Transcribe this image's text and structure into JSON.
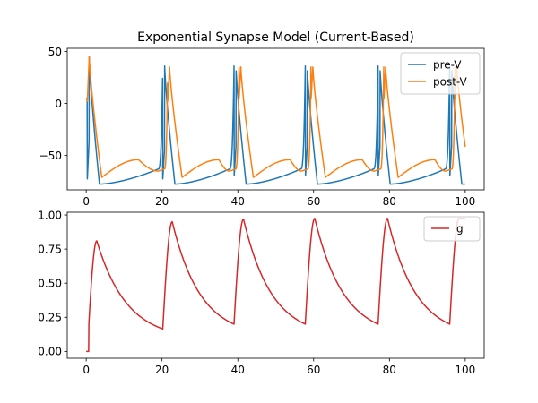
{
  "chart_data": [
    {
      "type": "line",
      "title": "Exponential Synapse Model (Current-Based)",
      "xlabel": "",
      "ylabel": "",
      "xlim": [
        -5,
        105
      ],
      "ylim": [
        -83,
        53
      ],
      "xticks": [
        0,
        20,
        40,
        60,
        80,
        100
      ],
      "yticks": [
        50,
        0,
        -50
      ],
      "legend_position": "upper-right",
      "grid": false,
      "series": [
        {
          "name": "pre-V",
          "color": "#1f77b4",
          "spike_times": [
            0.3,
            20.2,
            39.0,
            57.8,
            77.0,
            95.9
          ],
          "peak_values": [
            45,
            36,
            36,
            36,
            36,
            36
          ],
          "trough": -77.5,
          "pre_spike_level": -65
        },
        {
          "name": "post-V",
          "color": "#ff7f0e",
          "spike_times": [
            0.3,
            21.5,
            40.3,
            59.3,
            78.5,
            97.3
          ],
          "peak_values": [
            45,
            35,
            35,
            35,
            35,
            35
          ],
          "trough": -71,
          "bump_peak": -54,
          "pre_spike_level": -63,
          "end_value": -63
        }
      ]
    },
    {
      "type": "line",
      "title": "",
      "xlabel": "",
      "ylabel": "",
      "xlim": [
        -5,
        105
      ],
      "ylim": [
        -0.05,
        1.02
      ],
      "xticks": [
        0,
        20,
        40,
        60,
        80,
        100
      ],
      "yticks": [
        0.0,
        0.25,
        0.5,
        0.75,
        1.0
      ],
      "ytick_labels": [
        "0.00",
        "0.25",
        "0.50",
        "0.75",
        "1.00"
      ],
      "legend_position": "upper-right",
      "grid": false,
      "series": [
        {
          "name": "g",
          "color": "#d62728",
          "spike_times": [
            0.3,
            20.2,
            39.0,
            57.8,
            77.0,
            95.9
          ],
          "peak_values": [
            0.81,
            0.95,
            0.97,
            0.975,
            0.975,
            0.975
          ],
          "valley_values": [
            0.0,
            0.165,
            0.2,
            0.2,
            0.2,
            0.2
          ]
        }
      ]
    }
  ]
}
